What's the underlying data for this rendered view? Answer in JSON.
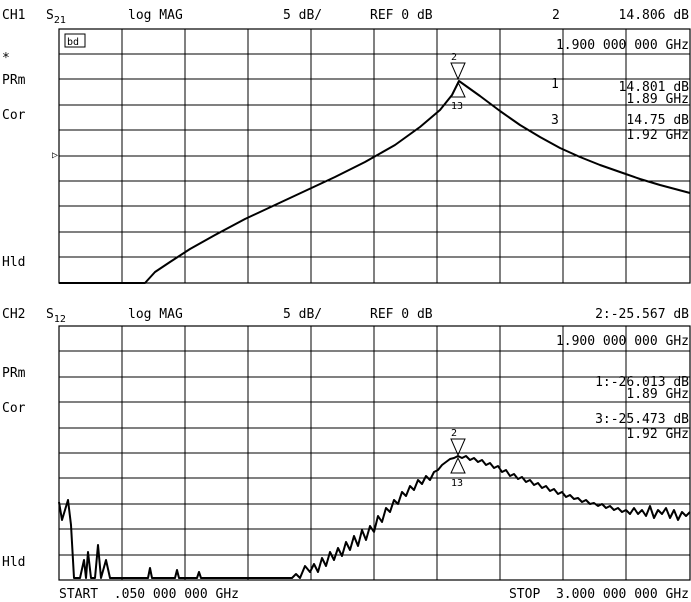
{
  "ch1": {
    "channel": "CH1",
    "param_main": "S",
    "param_sub": "21",
    "format": "log MAG",
    "scale": "5 dB/",
    "ref": "REF 0 dB",
    "active_marker": "2",
    "active_value": "14.806 dB",
    "active_freq": "1.900 000 000 GHz",
    "marker_box": "bd",
    "m1_label": "1",
    "m1_value": "14.801 dB",
    "m1_freq": "1.89 GHz",
    "m3_label": "3",
    "m3_value": "14.75  dB",
    "m3_freq": "1.92 GHz",
    "side": [
      "*",
      "PRm",
      "Cor",
      "Hld"
    ],
    "ref_arrow": "▷",
    "marker_top": "2",
    "marker_bottom": "13"
  },
  "ch2": {
    "channel": "CH2",
    "param_main": "S",
    "param_sub": "12",
    "format": "log MAG",
    "scale": "5 dB/",
    "ref": "REF 0 dB",
    "active_header": "2:-25.567 dB",
    "active_freq": "1.900 000 000 GHz",
    "m1_value": "1:-26.013 dB",
    "m1_freq": "1.89 GHz",
    "m3_value": "3:-25.473 dB",
    "m3_freq": "1.92 GHz",
    "side": [
      "PRm",
      "Cor",
      "Hld"
    ],
    "marker_top": "2",
    "marker_bottom": "13"
  },
  "footer": {
    "start": "START  .050 000 000 GHz",
    "stop": "STOP  3.000 000 000 GHz"
  }
}
